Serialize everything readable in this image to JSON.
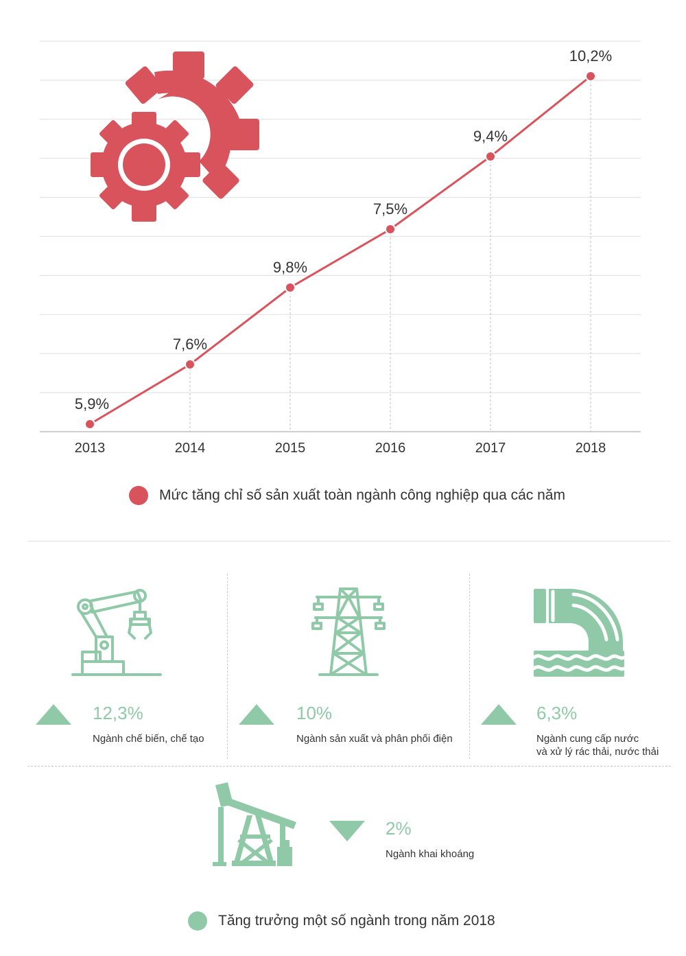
{
  "chart_data": [
    {
      "type": "line",
      "categories": [
        "2013",
        "2014",
        "2015",
        "2016",
        "2017",
        "2018"
      ],
      "series": [
        {
          "name": "Mức tăng chỉ số sản xuất toàn ngành công nghiệp qua các năm",
          "values": [
            5.9,
            7.6,
            9.8,
            7.5,
            9.4,
            10.2
          ],
          "labels": [
            "5,9%",
            "7,6%",
            "9,8%",
            "7,5%",
            "9,4%",
            "10,2%"
          ]
        }
      ],
      "title": "",
      "xlabel": "",
      "ylabel": "",
      "grid": true,
      "legend_position": "bottom",
      "color": "#d9535c"
    },
    {
      "type": "table",
      "title": "Tăng trưởng một số ngành trong năm 2018",
      "rows": [
        {
          "label": "Ngành chế biến, chế tạo",
          "value": "12,3%",
          "direction": "up",
          "icon": "robotic-arm-icon"
        },
        {
          "label": "Ngành sản xuất và phân phối điện",
          "value": "10%",
          "direction": "up",
          "icon": "power-tower-icon"
        },
        {
          "label": "Ngành cung cấp nước\nvà xử lý rác thải, nước thải",
          "value": "6,3%",
          "direction": "up",
          "icon": "sewage-pipe-icon"
        },
        {
          "label": "Ngành khai khoáng",
          "value": "2%",
          "direction": "down",
          "icon": "oil-pump-icon"
        }
      ],
      "color": "#8fc9a8"
    }
  ],
  "legend1": {
    "text": "Mức tăng chỉ số sản xuất toàn ngành công nghiệp qua các năm",
    "color": "#d9535c"
  },
  "legend2": {
    "text": "Tăng trưởng một số ngành trong năm 2018",
    "color": "#8fc9a8"
  },
  "sectors": {
    "s1": {
      "value": "12,3%",
      "label": "Ngành chế biến, chế tạo"
    },
    "s2": {
      "value": "10%",
      "label": "Ngành sản xuất và phân phối điện"
    },
    "s3": {
      "value": "6,3%",
      "label_line1": "Ngành cung cấp nước",
      "label_line2": "và xử lý rác thải, nước thải"
    },
    "s4": {
      "value": "2%",
      "label": "Ngành khai khoáng"
    }
  },
  "icons": {
    "gears": "gears-icon",
    "up": "triangle-up-icon",
    "down": "triangle-down-icon"
  }
}
